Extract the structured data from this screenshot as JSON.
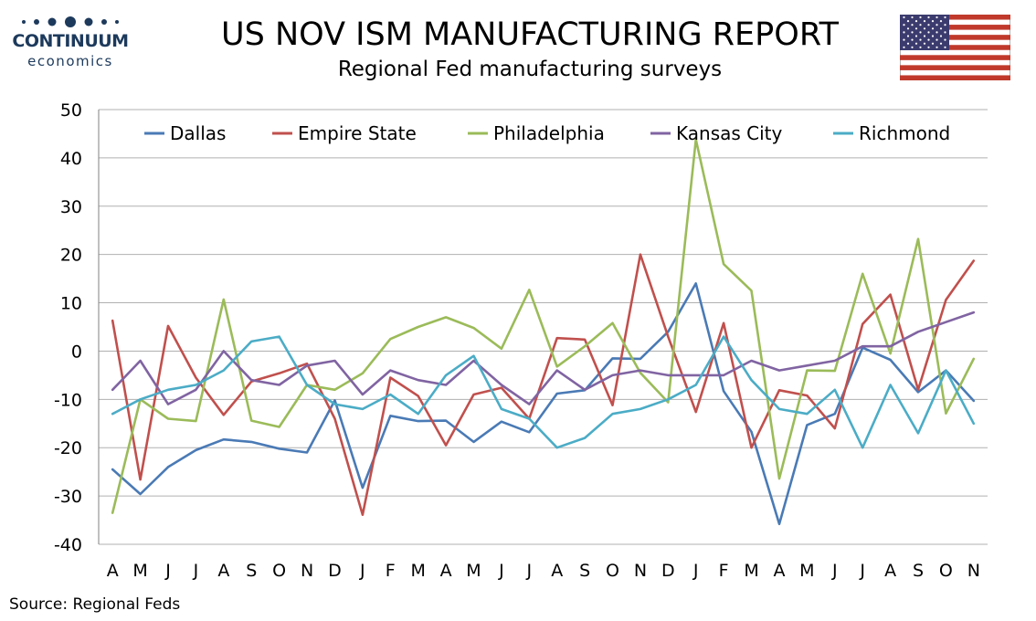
{
  "header": {
    "logo_brand": "CONTINUUM",
    "logo_sub": "economics",
    "title": "US NOV ISM MANUFACTURING REPORT",
    "subtitle": "Regional Fed manufacturing surveys"
  },
  "flag_icon": "us-flag-icon",
  "source": "Source: Regional Feds",
  "colors": {
    "Dallas": "#4a7ab5",
    "Empire State": "#c0504d",
    "Philadelphia": "#9bbb59",
    "Kansas City": "#8064a2",
    "Richmond": "#4bacc6",
    "grid": "#b0b0b0",
    "logo": "#1d3a5c"
  },
  "chart_data": {
    "type": "line",
    "title": "US NOV ISM MANUFACTURING REPORT",
    "subtitle": "Regional Fed manufacturing surveys",
    "xlabel": "",
    "ylabel": "",
    "ylim": [
      -40,
      50
    ],
    "yticks": [
      -40,
      -30,
      -20,
      -10,
      0,
      10,
      20,
      30,
      40,
      50
    ],
    "grid": true,
    "legend_position": "top",
    "categories": [
      "A",
      "M",
      "J",
      "J",
      "A",
      "S",
      "O",
      "N",
      "D",
      "J",
      "F",
      "M",
      "A",
      "M",
      "J",
      "J",
      "A",
      "S",
      "O",
      "N",
      "D",
      "J",
      "F",
      "M",
      "A",
      "M",
      "J",
      "J",
      "A",
      "S",
      "O",
      "N"
    ],
    "series": [
      {
        "name": "Dallas",
        "values": [
          -24.5,
          -29.6,
          -24,
          -20.5,
          -18.3,
          -18.8,
          -20.2,
          -21,
          -10.2,
          -28.3,
          -13.4,
          -14.5,
          -14.4,
          -18.8,
          -14.6,
          -16.8,
          -8.8,
          -8.1,
          -1.5,
          -1.6,
          4,
          14,
          -8.3,
          -16.7,
          -35.8,
          -15.3,
          -13,
          0.7,
          -1.8,
          -8.5,
          -4,
          -10.3
        ]
      },
      {
        "name": "Empire State",
        "values": [
          6.3,
          -26.6,
          5.2,
          -5.5,
          -13.2,
          -6.3,
          -4.6,
          -2.6,
          -14,
          -33.9,
          -5.5,
          -9.3,
          -19.5,
          -9,
          -7.6,
          -14,
          2.7,
          2.4,
          -11.2,
          20,
          3,
          -12.6,
          5.8,
          -20,
          -8.1,
          -9.2,
          -16,
          5.6,
          11.7,
          -8,
          10.6,
          18.7
        ]
      },
      {
        "name": "Philadelphia",
        "values": [
          -33.5,
          -10,
          -14,
          -14.5,
          10.7,
          -14.4,
          -15.7,
          -7,
          -8,
          -4.6,
          2.5,
          5,
          7,
          4.8,
          0.5,
          12.7,
          -3.2,
          1,
          5.8,
          -4.5,
          -10.6,
          43.8,
          18,
          12.5,
          -26.4,
          -4,
          -4.1,
          16,
          -0.5,
          23.2,
          -12.9,
          -1.6
        ]
      },
      {
        "name": "Kansas City",
        "values": [
          -8,
          -2,
          -11,
          -8,
          0,
          -6,
          -7,
          -3,
          -2,
          -9,
          -4,
          -6,
          -7,
          -2,
          -7,
          -11,
          -4,
          -8,
          -5,
          -4,
          -5,
          -5,
          -5,
          -2,
          -4,
          -3,
          -2,
          1,
          1,
          4,
          6,
          8
        ]
      },
      {
        "name": "Richmond",
        "values": [
          -13,
          -10,
          -8,
          -7,
          -4,
          2,
          3,
          -7,
          -11,
          -12,
          -9,
          -13,
          -5,
          -1,
          -12,
          -14,
          -20,
          -18,
          -13,
          -12,
          -10,
          -7,
          3,
          -6,
          -12,
          -13,
          -8,
          -20,
          -7,
          -17,
          -4,
          -15
        ]
      }
    ]
  }
}
